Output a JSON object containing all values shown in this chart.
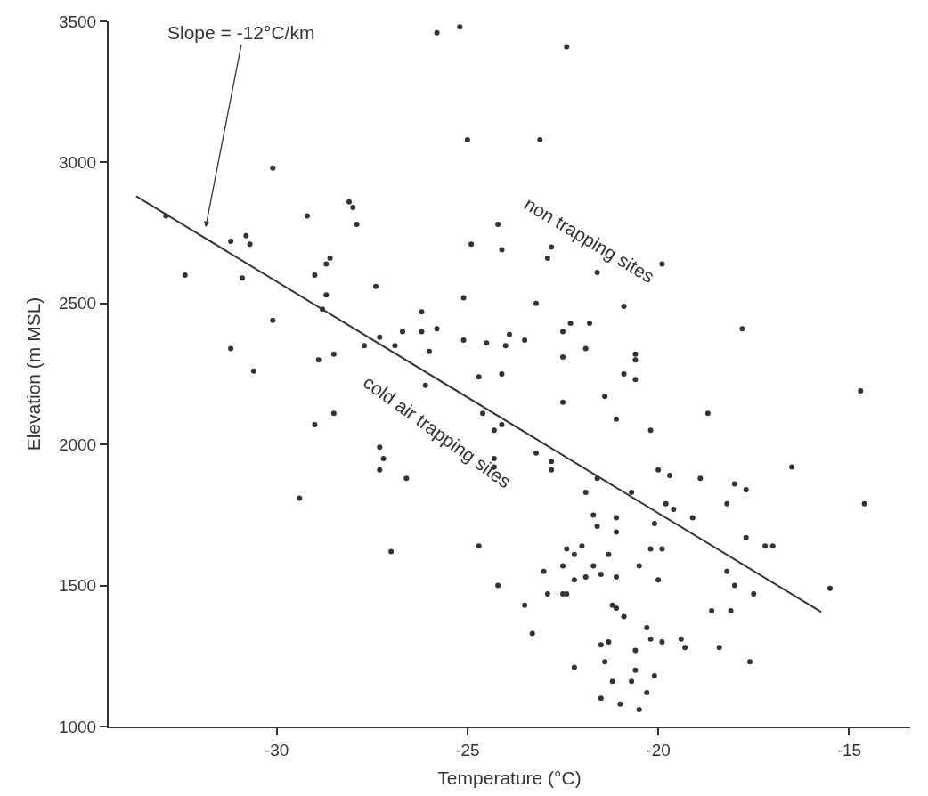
{
  "chart_data": {
    "type": "scatter",
    "xlabel": "Temperature (°C)",
    "ylabel": "Elevation (m MSL)",
    "xlim": [
      -34.4,
      -13.4
    ],
    "ylim": [
      1000,
      3500
    ],
    "xticks": [
      -30,
      -25,
      -20,
      -15
    ],
    "yticks": [
      1000,
      1500,
      2000,
      2500,
      3000,
      3500
    ],
    "annotations": [
      "Slope = -12°C/km",
      "non trapping sites",
      "cold air trapping sites"
    ],
    "series": [
      {
        "marker": "circle",
        "color": "#333333",
        "x": [
          -25.8,
          -25.2,
          -25.0,
          -30.1,
          -32.9,
          -29.2,
          -28.1,
          -28.0,
          -27.9,
          -24.2,
          -31.2,
          -30.8,
          -30.7,
          -24.9,
          -24.1,
          -32.4,
          -30.9,
          -29.0,
          -28.7,
          -28.6,
          -28.7,
          -28.8,
          -27.4,
          -25.1,
          -30.1,
          -26.2,
          -26.7,
          -26.2,
          -25.8,
          -27.3,
          -27.7,
          -26.9,
          -26.0,
          -25.1,
          -24.5,
          -24.0,
          -31.2,
          -28.5,
          -28.9,
          -30.6,
          -22.4,
          -23.1,
          -19.9,
          -22.8,
          -22.9,
          -21.6,
          -23.2,
          -20.9,
          -17.8,
          -22.3,
          -21.8,
          -22.5,
          -23.9,
          -23.5,
          -21.9,
          -22.5,
          -20.6,
          -20.6,
          -20.9,
          -20.6,
          -24.1,
          -22.5,
          -21.4,
          -21.1,
          -18.7,
          -14.7,
          -20.2,
          -24.3,
          -24.1,
          -23.2,
          -24.3,
          -24.3,
          -22.8,
          -22.8,
          -21.6,
          -21.9,
          -20.7,
          -20.0,
          -19.7,
          -18.9,
          -18.0,
          -17.7,
          -16.5,
          -14.6,
          -19.8,
          -19.6,
          -18.2,
          -19.1,
          -21.7,
          -21.6,
          -21.1,
          -21.1,
          -20.1,
          -17.7,
          -17.2,
          -17.0,
          -22.4,
          -22.2,
          -22.0,
          -21.3,
          -20.2,
          -19.9,
          -22.5,
          -23.0,
          -21.7,
          -21.5,
          -22.2,
          -21.9,
          -21.1,
          -20.5,
          -20.0,
          -24.2,
          -18.2,
          -18.0,
          -17.5,
          -15.5,
          -22.9,
          -22.5,
          -22.4,
          -23.5,
          -21.2,
          -21.1,
          -20.9,
          -18.6,
          -18.1,
          -23.3,
          -20.3,
          -21.5,
          -21.3,
          -20.2,
          -19.9,
          -19.4,
          -19.3,
          -18.4,
          -20.6,
          -22.2,
          -21.4,
          -17.6,
          -20.6,
          -20.1,
          -21.2,
          -20.7,
          -20.3,
          -21.5,
          -21.0,
          -20.5,
          -26.1,
          -24.7,
          -28.5,
          -29.0,
          -24.6,
          -27.3,
          -27.2,
          -27.3,
          -26.6,
          -29.4,
          -27.0,
          -24.7
        ],
        "values": [
          3460,
          3480,
          3080,
          2980,
          2810,
          2810,
          2860,
          2840,
          2780,
          2780,
          2720,
          2740,
          2710,
          2710,
          2690,
          2600,
          2590,
          2600,
          2640,
          2660,
          2530,
          2480,
          2560,
          2520,
          2440,
          2470,
          2400,
          2400,
          2410,
          2380,
          2350,
          2350,
          2330,
          2370,
          2360,
          2350,
          2340,
          2320,
          2300,
          2260,
          3410,
          3080,
          2640,
          2700,
          2660,
          2610,
          2500,
          2490,
          2410,
          2430,
          2430,
          2400,
          2390,
          2370,
          2340,
          2310,
          2320,
          2300,
          2250,
          2230,
          2250,
          2150,
          2170,
          2090,
          2110,
          2190,
          2050,
          2050,
          2070,
          1970,
          1950,
          1920,
          1940,
          1910,
          1880,
          1830,
          1830,
          1910,
          1890,
          1880,
          1860,
          1840,
          1920,
          1790,
          1790,
          1770,
          1790,
          1740,
          1750,
          1710,
          1740,
          1690,
          1720,
          1670,
          1640,
          1640,
          1630,
          1610,
          1640,
          1610,
          1630,
          1630,
          1570,
          1550,
          1570,
          1540,
          1520,
          1530,
          1530,
          1570,
          1520,
          1500,
          1550,
          1500,
          1470,
          1490,
          1470,
          1470,
          1470,
          1430,
          1430,
          1420,
          1390,
          1410,
          1410,
          1330,
          1350,
          1290,
          1300,
          1310,
          1300,
          1310,
          1280,
          1280,
          1270,
          1210,
          1230,
          1230,
          1200,
          1180,
          1160,
          1160,
          1120,
          1100,
          1080,
          1060,
          2210,
          2240,
          2110,
          2070,
          2110,
          1990,
          1950,
          1910,
          1880,
          1810,
          1620,
          1640
        ]
      },
      {
        "type": "line",
        "color": "#333333",
        "x": [
          -33.68,
          -15.73
        ],
        "values": [
          2880,
          1406
        ]
      }
    ]
  }
}
